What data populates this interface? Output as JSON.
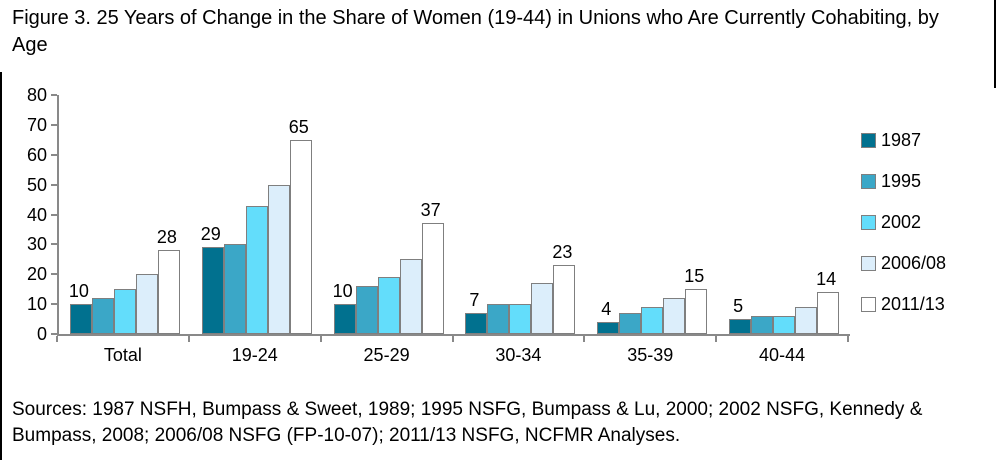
{
  "title": "Figure 3. 25 Years of Change in the Share of Women (19-44) in Unions who Are Currently Cohabiting, by Age",
  "sources": "Sources: 1987 NSFH, Bumpass & Sweet, 1989; 1995 NSFG, Bumpass & Lu, 2000; 2002 NSFG, Kennedy & Bumpass, 2008; 2006/08 NSFG (FP-10-07); 2011/13 NSFG, NCFMR Analyses.",
  "chart_data": {
    "type": "bar",
    "categories": [
      "Total",
      "19-24",
      "25-29",
      "30-34",
      "35-39",
      "40-44"
    ],
    "series": [
      {
        "name": "1987",
        "color": "#01718F",
        "values": [
          10,
          29,
          10,
          7,
          4,
          5
        ],
        "value_labels_shown": true
      },
      {
        "name": "1995",
        "color": "#3BA7C7",
        "values": [
          12,
          30,
          16,
          10,
          7,
          6
        ],
        "value_labels_shown": false
      },
      {
        "name": "2002",
        "color": "#63DDFB",
        "values": [
          15,
          43,
          19,
          10,
          9,
          6
        ],
        "value_labels_shown": false
      },
      {
        "name": "2006/08",
        "color": "#DCEEFB",
        "values": [
          20,
          50,
          25,
          17,
          12,
          9
        ],
        "value_labels_shown": false
      },
      {
        "name": "2011/13",
        "color": "#FFFFFF",
        "values": [
          28,
          65,
          37,
          23,
          15,
          14
        ],
        "value_labels_shown": true
      }
    ],
    "xlabel": "",
    "ylabel": "",
    "ylim": [
      0,
      80
    ],
    "yticks": [
      0,
      10,
      20,
      30,
      40,
      50,
      60,
      70,
      80
    ],
    "grid": false,
    "legend_position": "right",
    "bar_border_color": "#7F7F7F",
    "axis_color": "#898989"
  }
}
